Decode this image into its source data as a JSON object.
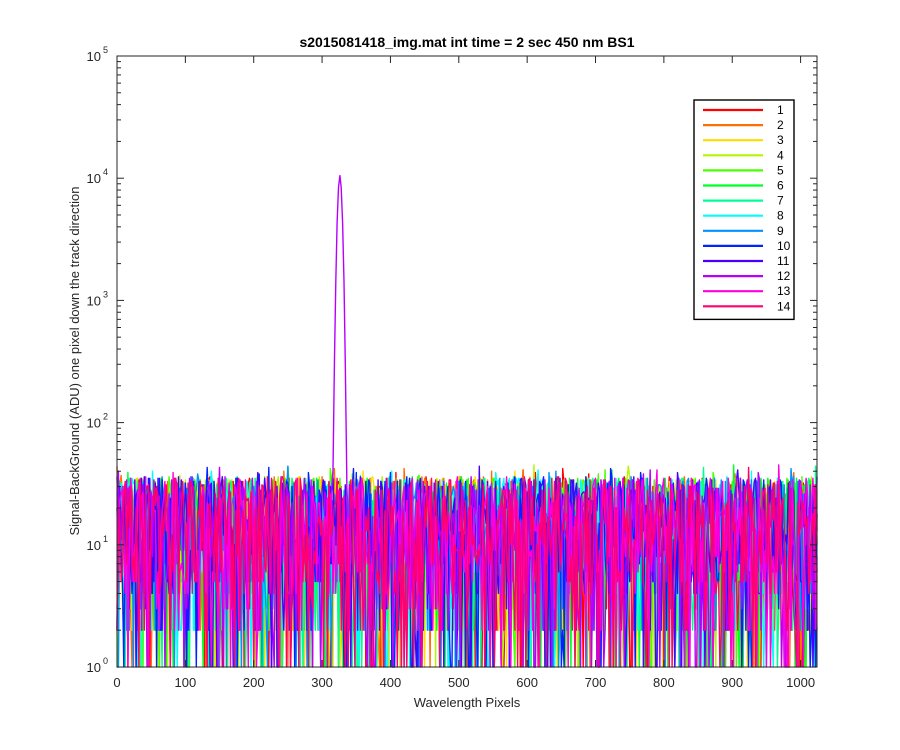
{
  "chart_data": {
    "type": "line",
    "title": "s2015081418_img.mat int time = 2 sec  450 nm BS1",
    "xlabel": "Wavelength Pixels",
    "ylabel": "Signal-BackGround (ADU) one pixel down the track direction",
    "xlim": [
      0,
      1024
    ],
    "ylim": [
      1,
      100000
    ],
    "yscale": "log",
    "xticks": [
      0,
      100,
      200,
      300,
      400,
      500,
      600,
      700,
      800,
      900,
      1000
    ],
    "xtick_labels": [
      "0",
      "100",
      "200",
      "300",
      "400",
      "500",
      "600",
      "700",
      "800",
      "900",
      "1000"
    ],
    "yticks": [
      1,
      10,
      100,
      1000,
      10000,
      100000
    ],
    "ytick_labels": [
      {
        "base": "10",
        "exp": "0"
      },
      {
        "base": "10",
        "exp": "1"
      },
      {
        "base": "10",
        "exp": "2"
      },
      {
        "base": "10",
        "exp": "3"
      },
      {
        "base": "10",
        "exp": "4"
      },
      {
        "base": "10",
        "exp": "5"
      }
    ],
    "grid": false,
    "legend_position": "top-right",
    "noise_range": [
      1,
      45
    ],
    "series": [
      {
        "name": "1",
        "color": "#ff0000"
      },
      {
        "name": "2",
        "color": "#ff6e00"
      },
      {
        "name": "3",
        "color": "#ffdc00"
      },
      {
        "name": "4",
        "color": "#b6f500"
      },
      {
        "name": "5",
        "color": "#49ff00"
      },
      {
        "name": "6",
        "color": "#00ff24"
      },
      {
        "name": "7",
        "color": "#00ff92"
      },
      {
        "name": "8",
        "color": "#00ffff"
      },
      {
        "name": "9",
        "color": "#0092ff"
      },
      {
        "name": "10",
        "color": "#0024ff"
      },
      {
        "name": "11",
        "color": "#4900ff"
      },
      {
        "name": "12",
        "color": "#b600ff",
        "peak": {
          "x": 326,
          "y": 10500
        }
      },
      {
        "name": "13",
        "color": "#ff00dc"
      },
      {
        "name": "14",
        "color": "#ff006e"
      }
    ]
  }
}
